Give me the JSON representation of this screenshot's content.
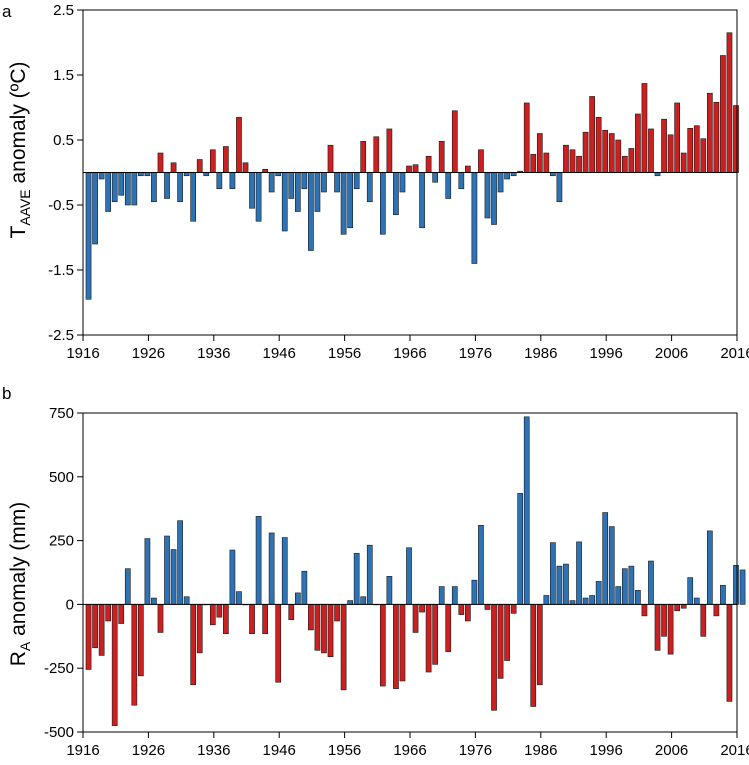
{
  "chart_data": [
    {
      "panel": "a",
      "type": "bar",
      "title": "",
      "ylabel": {
        "main": "T",
        "sub": "AAVE",
        "rest": " anomaly (ºC)"
      },
      "xlabel": "",
      "ylim": [
        -2.5,
        2.5
      ],
      "yticks": [
        -2.5,
        -1.5,
        -0.5,
        0.5,
        1.5,
        2.5
      ],
      "ytick_labels": [
        "-2.5",
        "-1.5",
        "-0.5",
        "0.5",
        "1.5",
        "2.5"
      ],
      "xlim": [
        1916,
        2016
      ],
      "xticks": [
        1916,
        1926,
        1936,
        1946,
        1956,
        1966,
        1976,
        1986,
        1996,
        2006,
        2016
      ],
      "xtick_labels": [
        "1916",
        "1926",
        "1936",
        "1946",
        "1956",
        "1966",
        "1976",
        "1986",
        "1996",
        "2006",
        "2016"
      ],
      "start_year": 1917,
      "colors": {
        "positive": "#cc1f1f",
        "negative": "#2e72b6"
      },
      "values": [
        -1.95,
        -1.1,
        -0.1,
        -0.6,
        -0.45,
        -0.35,
        -0.5,
        -0.5,
        -0.05,
        -0.05,
        -0.45,
        0.3,
        -0.4,
        0.15,
        -0.45,
        -0.05,
        -0.75,
        0.2,
        -0.05,
        0.35,
        -0.25,
        0.4,
        -0.25,
        0.85,
        0.15,
        -0.55,
        -0.75,
        0.05,
        -0.3,
        -0.05,
        -0.9,
        -0.4,
        -0.6,
        -0.25,
        -1.2,
        -0.6,
        -0.3,
        0.42,
        -0.3,
        -0.95,
        -0.85,
        -0.25,
        0.48,
        -0.45,
        0.55,
        -0.95,
        0.67,
        -0.65,
        -0.3,
        0.1,
        0.12,
        -0.85,
        0.25,
        -0.15,
        0.48,
        -0.4,
        0.95,
        -0.25,
        0.1,
        -1.4,
        0.35,
        -0.7,
        -0.8,
        -0.3,
        -0.1,
        -0.05,
        0.02,
        1.07,
        0.28,
        0.6,
        0.3,
        -0.05,
        -0.45,
        0.42,
        0.35,
        0.25,
        0.62,
        1.17,
        0.85,
        0.65,
        0.6,
        0.5,
        0.25,
        0.37,
        0.9,
        1.37,
        0.67,
        -0.05,
        0.82,
        0.58,
        1.07,
        0.3,
        0.68,
        0.72,
        0.52,
        1.22,
        1.08,
        1.8,
        2.15,
        1.03
      ]
    },
    {
      "panel": "b",
      "type": "bar",
      "title": "",
      "ylabel": {
        "main": "R",
        "sub": "A",
        "rest": " anomaly (mm)"
      },
      "xlabel": "",
      "ylim": [
        -500,
        750
      ],
      "yticks": [
        -500,
        -250,
        0,
        250,
        500,
        750
      ],
      "ytick_labels": [
        "-500",
        "-250",
        "0",
        "250",
        "500",
        "750"
      ],
      "xlim": [
        1916,
        2016
      ],
      "xticks": [
        1916,
        1926,
        1936,
        1946,
        1956,
        1966,
        1976,
        1986,
        1996,
        2006,
        2016
      ],
      "xtick_labels": [
        "1916",
        "1926",
        "1936",
        "1946",
        "1956",
        "1966",
        "1976",
        "1986",
        "1996",
        "2006",
        "2016"
      ],
      "start_year": 1917,
      "colors": {
        "positive": "#2e72b6",
        "negative": "#cc1f1f"
      },
      "values": [
        -255,
        -170,
        -200,
        -65,
        -475,
        -75,
        140,
        -395,
        -280,
        258,
        25,
        -110,
        268,
        215,
        328,
        30,
        -315,
        -190,
        0,
        -80,
        -50,
        -115,
        213,
        50,
        0,
        -115,
        345,
        -115,
        280,
        -305,
        262,
        -60,
        45,
        130,
        -100,
        -180,
        -190,
        -205,
        -65,
        -335,
        15,
        200,
        30,
        232,
        0,
        -320,
        110,
        -330,
        -300,
        222,
        -110,
        -30,
        -265,
        -235,
        70,
        -185,
        70,
        -40,
        -65,
        95,
        310,
        -20,
        -415,
        -290,
        -220,
        -35,
        435,
        735,
        -400,
        -315,
        35,
        242,
        150,
        158,
        15,
        245,
        25,
        35,
        90,
        360,
        305,
        70,
        140,
        150,
        55,
        -45,
        170,
        -180,
        -125,
        -195,
        -25,
        -15,
        105,
        25,
        -125,
        288,
        -45,
        75,
        -380,
        153,
        135
      ]
    }
  ]
}
